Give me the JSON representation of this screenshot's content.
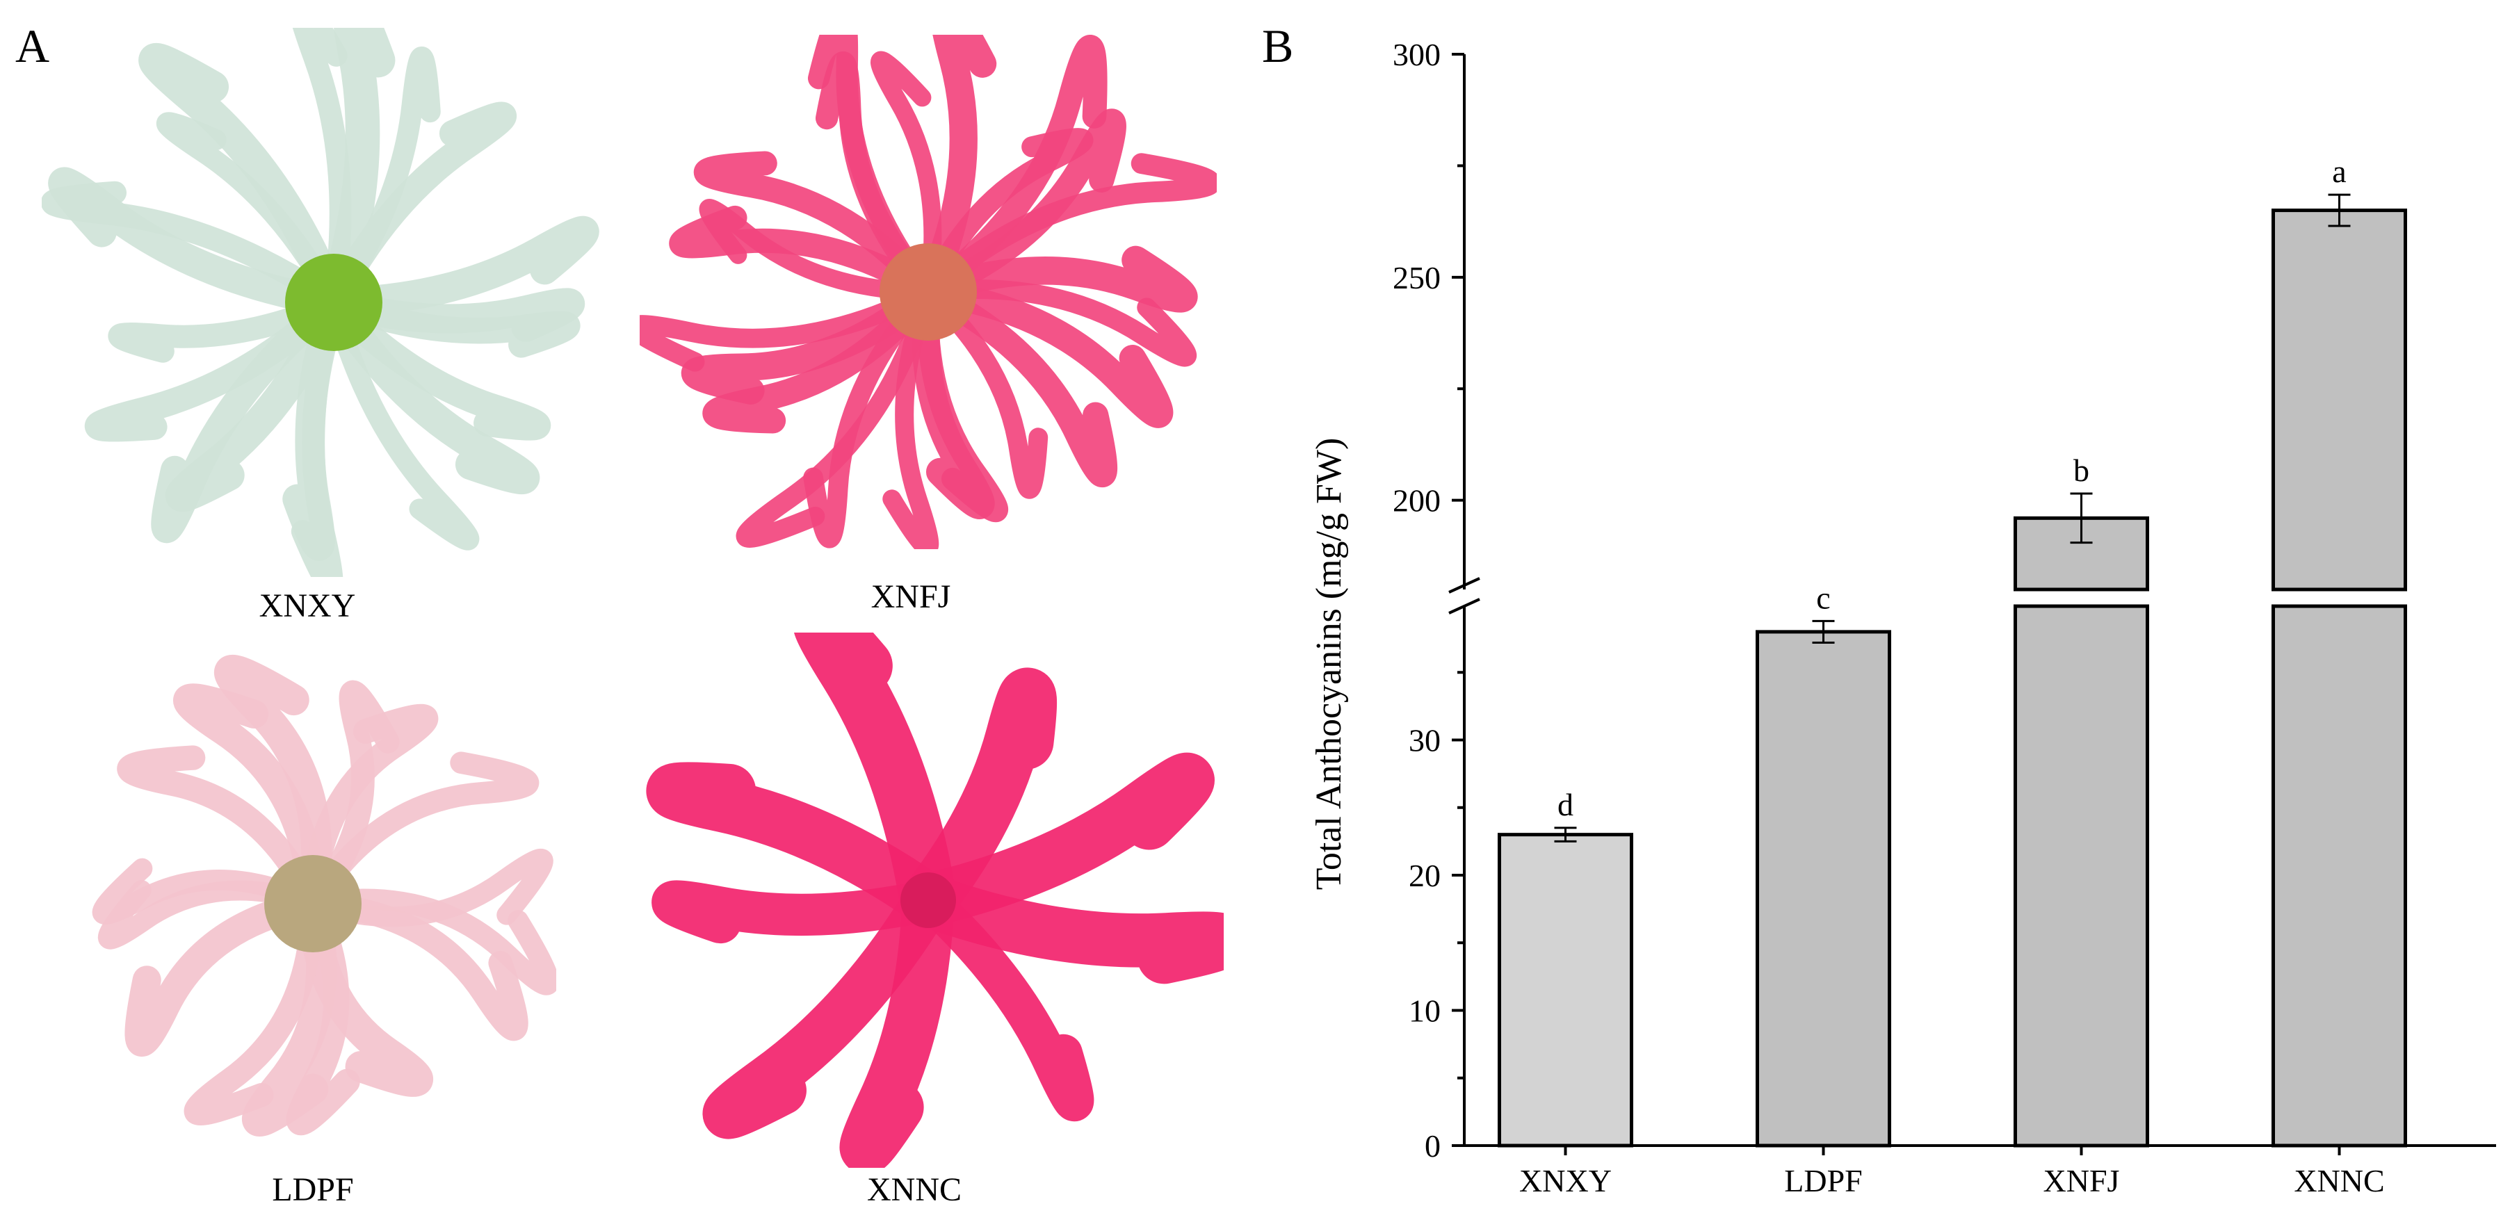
{
  "panel_a": {
    "letter": "A",
    "flowers": [
      {
        "label": "XNXY",
        "color": "#cfe3d8",
        "center_color": "#7dbb2f",
        "icon": "flower-white-green"
      },
      {
        "label": "XNFJ",
        "color": "#f2457e",
        "center_color": "#d9735a",
        "icon": "flower-pink-spider"
      },
      {
        "label": "LDPF",
        "color": "#f3c3cd",
        "center_color": "#b9a77e",
        "icon": "flower-light-pink"
      },
      {
        "label": "XNNC",
        "color": "#f2236c",
        "center_color": "#d91c5c",
        "icon": "flower-magenta"
      }
    ]
  },
  "panel_b": {
    "letter": "B"
  },
  "chart_data": {
    "type": "bar",
    "categories": [
      "XNXY",
      "LDPF",
      "XNFJ",
      "XNNC"
    ],
    "values": [
      23,
      38,
      196,
      265
    ],
    "errors": [
      0.5,
      0.8,
      5.5,
      3.5
    ],
    "significance_letters": [
      "d",
      "c",
      "b",
      "a"
    ],
    "bar_colors": [
      "#d3d3d3",
      "#c0c0c0",
      "#c0c0c0",
      "#c0c0c0"
    ],
    "ylabel": "Total Anthocyanins (mg/g FW)",
    "xlabel": "",
    "y_axis_break": true,
    "lower_segment": {
      "range": [
        0,
        40
      ],
      "ticks": [
        0,
        10,
        20,
        30
      ]
    },
    "upper_segment": {
      "range": [
        180,
        300
      ],
      "ticks": [
        200,
        250,
        300
      ]
    },
    "grid": false,
    "legend": "none"
  }
}
